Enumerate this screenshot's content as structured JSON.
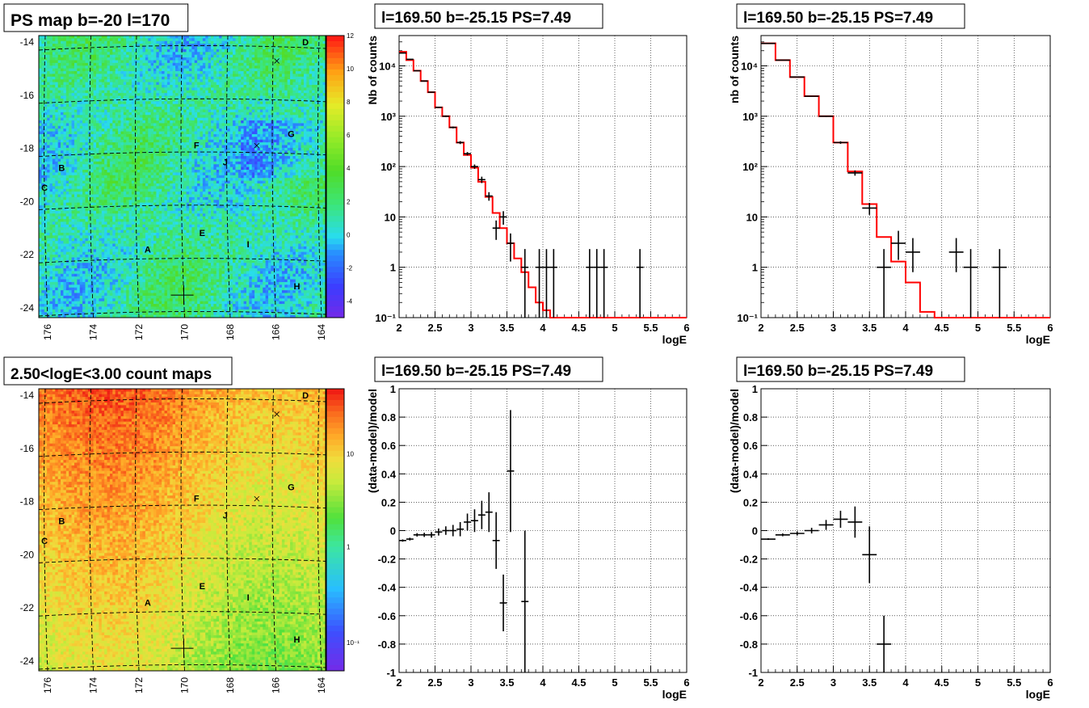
{
  "colors": {
    "fit": "#ff0000",
    "data": "#000000",
    "frame": "#000000",
    "grid": "#000000"
  },
  "maps": [
    {
      "title": "PS map b=-20 l=170",
      "xticks": [
        "176",
        "174",
        "172",
        "170",
        "168",
        "166",
        "164"
      ],
      "yticks": [
        "-14",
        "-16",
        "-18",
        "-20",
        "-22",
        "-24"
      ],
      "palette": "difference",
      "zticks": [
        "12",
        "10",
        "8",
        "6",
        "4",
        "2",
        "0",
        "-2",
        "-4"
      ],
      "sources": [
        "A",
        "B",
        "C",
        "D",
        "E",
        "F",
        "G",
        "H",
        "I",
        "J"
      ]
    },
    {
      "title": "2.50<logE<3.00 count maps",
      "xticks": [
        "176",
        "174",
        "172",
        "170",
        "168",
        "166",
        "164"
      ],
      "yticks": [
        "-14",
        "-16",
        "-18",
        "-20",
        "-22",
        "-24"
      ],
      "palette": "counts",
      "zticks": [
        "10",
        "1",
        "10⁻¹"
      ],
      "sources": [
        "A",
        "B",
        "C",
        "D",
        "E",
        "F",
        "G",
        "H",
        "I",
        "J"
      ]
    }
  ],
  "chart_data": [
    {
      "type": "line",
      "title": "l=169.50 b=-25.15 PS=7.49",
      "xlabel": "logE",
      "ylabel": "Nb of counts",
      "xlim": [
        2,
        6
      ],
      "ylim": [
        0.1,
        40000
      ],
      "yscale": "log",
      "grid": true,
      "xticks": [
        "2",
        "2.5",
        "3",
        "3.5",
        "4",
        "4.5",
        "5",
        "5.5",
        "6"
      ],
      "yticks": [
        "10⁻¹",
        "1",
        "10",
        "10²",
        "10³",
        "10⁴"
      ],
      "series": [
        {
          "kind": "histogram",
          "color": "#ff0000",
          "edges": [
            2.0,
            2.1,
            2.2,
            2.3,
            2.4,
            2.5,
            2.6,
            2.7,
            2.8,
            2.9,
            3.0,
            3.1,
            3.2,
            3.3,
            3.4,
            3.5,
            3.6,
            3.7,
            3.8,
            3.9,
            4.0,
            4.1,
            4.2,
            6.0
          ],
          "values": [
            19000,
            13000,
            8000,
            5000,
            3000,
            1500,
            1000,
            600,
            300,
            170,
            95,
            50,
            25,
            12,
            6,
            3,
            1.5,
            0.8,
            0.4,
            0.2,
            0.14,
            0.1,
            0.1
          ]
        },
        {
          "kind": "errorbars",
          "color": "#000000",
          "x": [
            2.05,
            2.15,
            2.25,
            2.35,
            2.45,
            2.55,
            2.65,
            2.75,
            2.85,
            2.95,
            3.05,
            3.15,
            3.25,
            3.35,
            3.45,
            3.55,
            3.75,
            3.95,
            4.05,
            4.15,
            4.65,
            4.75,
            4.85,
            5.35
          ],
          "y": [
            18000,
            13500,
            8000,
            5000,
            3000,
            1500,
            1000,
            600,
            300,
            180,
            100,
            55,
            26,
            6,
            10,
            3,
            1,
            1,
            1,
            1,
            1,
            1,
            1,
            1
          ],
          "yerr_low": [
            150,
            130,
            100,
            80,
            60,
            40,
            35,
            25,
            20,
            14,
            10,
            8,
            5,
            2.5,
            3,
            1.7,
            0.9,
            0.9,
            0.9,
            0.9,
            0.9,
            0.9,
            0.9,
            0.9
          ],
          "yerr_high": [
            150,
            130,
            100,
            80,
            60,
            40,
            35,
            25,
            20,
            14,
            10,
            8,
            5,
            2.5,
            3,
            1.7,
            1.3,
            1.3,
            1.3,
            1.3,
            1.3,
            1.3,
            1.3,
            1.3
          ]
        }
      ]
    },
    {
      "type": "line",
      "title": "l=169.50 b=-25.15 PS=7.49",
      "xlabel": "logE",
      "ylabel": "nb of counts",
      "xlim": [
        2,
        6
      ],
      "ylim": [
        0.1,
        40000
      ],
      "yscale": "log",
      "grid": true,
      "xticks": [
        "2",
        "2.5",
        "3",
        "3.5",
        "4",
        "4.5",
        "5",
        "5.5",
        "6"
      ],
      "yticks": [
        "10⁻¹",
        "1",
        "10",
        "10²",
        "10³",
        "10⁴"
      ],
      "series": [
        {
          "kind": "histogram",
          "color": "#ff0000",
          "edges": [
            2.0,
            2.2,
            2.4,
            2.6,
            2.8,
            3.0,
            3.2,
            3.4,
            3.6,
            3.8,
            4.0,
            4.2,
            4.4,
            6.0
          ],
          "values": [
            28000,
            13000,
            6000,
            2500,
            1000,
            300,
            80,
            18,
            4,
            1.3,
            0.5,
            0.13,
            0.1
          ]
        },
        {
          "kind": "errorbars",
          "color": "#000000",
          "x": [
            2.1,
            2.3,
            2.5,
            2.7,
            2.9,
            3.1,
            3.3,
            3.5,
            3.7,
            3.9,
            4.1,
            4.7,
            4.9,
            5.3
          ],
          "y": [
            28000,
            13000,
            6000,
            2500,
            1000,
            300,
            75,
            15,
            1,
            3,
            2,
            2,
            1,
            1
          ],
          "yerr_low": [
            170,
            110,
            80,
            50,
            30,
            17,
            9,
            4,
            0.9,
            1.6,
            1.2,
            1.2,
            0.9,
            0.9
          ],
          "yerr_high": [
            170,
            110,
            80,
            50,
            30,
            17,
            9,
            4,
            1.3,
            2.3,
            1.8,
            1.8,
            1.3,
            1.3
          ]
        }
      ]
    },
    {
      "type": "scatter",
      "title": "l=169.50 b=-25.15 PS=7.49",
      "xlabel": "logE",
      "ylabel": "(data-model)/model",
      "xlim": [
        2,
        6
      ],
      "ylim": [
        -1,
        1
      ],
      "grid": true,
      "xticks": [
        "2",
        "2.5",
        "3",
        "3.5",
        "4",
        "4.5",
        "5",
        "5.5",
        "6"
      ],
      "yticks": [
        "-1",
        "-0.8",
        "-0.6",
        "-0.4",
        "-0.2",
        "0",
        "0.2",
        "0.4",
        "0.6",
        "0.8",
        "1"
      ],
      "series": [
        {
          "kind": "errorbars",
          "color": "#000000",
          "x": [
            2.05,
            2.15,
            2.25,
            2.35,
            2.45,
            2.55,
            2.65,
            2.75,
            2.85,
            2.95,
            3.05,
            3.15,
            3.25,
            3.35,
            3.45,
            3.55,
            3.75
          ],
          "y": [
            -0.07,
            -0.06,
            -0.03,
            -0.03,
            -0.03,
            -0.01,
            0.0,
            0.0,
            0.01,
            0.06,
            0.07,
            0.11,
            0.13,
            -0.07,
            -0.51,
            0.42,
            -0.5
          ],
          "yerr": [
            0.008,
            0.01,
            0.012,
            0.015,
            0.02,
            0.025,
            0.03,
            0.04,
            0.05,
            0.06,
            0.08,
            0.1,
            0.14,
            0.2,
            0.2,
            0.43,
            0.5
          ]
        }
      ]
    },
    {
      "type": "scatter",
      "title": "l=169.50 b=-25.15 PS=7.49",
      "xlabel": "logE",
      "ylabel": "(data-model)/model",
      "xlim": [
        2,
        6
      ],
      "ylim": [
        -1,
        1
      ],
      "grid": true,
      "xticks": [
        "2",
        "2.5",
        "3",
        "3.5",
        "4",
        "4.5",
        "5",
        "5.5",
        "6"
      ],
      "yticks": [
        "-1",
        "-0.8",
        "-0.6",
        "-0.4",
        "-0.2",
        "0",
        "0.2",
        "0.4",
        "0.6",
        "0.8",
        "1"
      ],
      "series": [
        {
          "kind": "errorbars",
          "color": "#000000",
          "x": [
            2.1,
            2.3,
            2.5,
            2.7,
            2.9,
            3.1,
            3.3,
            3.5,
            3.7
          ],
          "y": [
            -0.06,
            -0.03,
            -0.02,
            0.0,
            0.04,
            0.08,
            0.06,
            -0.17,
            -0.8
          ],
          "yerr": [
            0.006,
            0.01,
            0.015,
            0.02,
            0.035,
            0.06,
            0.11,
            0.2,
            0.2
          ]
        }
      ]
    }
  ]
}
